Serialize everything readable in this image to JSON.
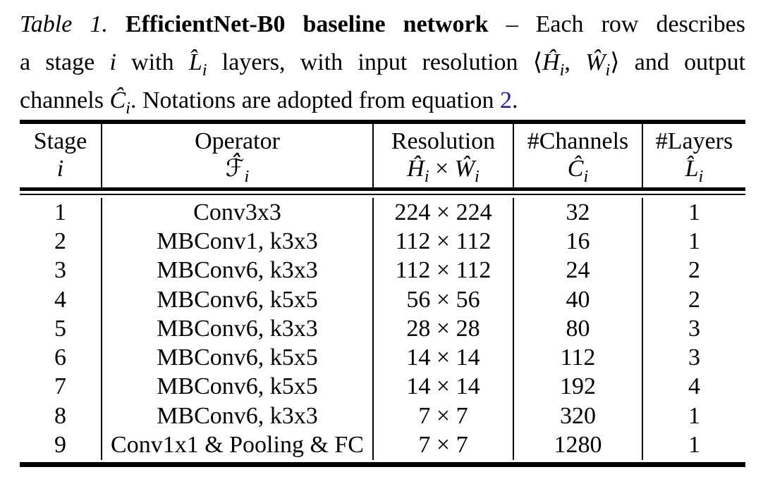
{
  "colors": {
    "text": "#000000",
    "background": "#ffffff",
    "link_blue": "#1c1c9c",
    "rule_black": "#000000"
  },
  "caption": {
    "line1": {
      "label": "Table 1.",
      "title": " EfficientNet-B0 baseline network",
      "rest": " – Each row describes"
    },
    "line2": {
      "pre": "a stage ",
      "i": "i",
      "mid": " with ",
      "L": {
        "base": "L̂",
        "sub": "i"
      },
      "mid2": " layers, with input resolution ",
      "langle": "⟨",
      "H": {
        "base": "Ĥ",
        "sub": "i"
      },
      "comma": ", ",
      "W": {
        "base": "Ŵ",
        "sub": "i"
      },
      "rangle": "⟩",
      "post": " and output"
    },
    "line3": {
      "pre": "channels ",
      "C": {
        "base": "Ĉ",
        "sub": "i"
      },
      "mid": ". Notations are adopted from equation ",
      "link": "2",
      "period": "."
    }
  },
  "table": {
    "header": {
      "stage": {
        "label": "Stage",
        "symbol_i": "i"
      },
      "operator": {
        "label": "Operator",
        "F": {
          "base": "ℱ̂",
          "sub": "i"
        }
      },
      "resolution": {
        "label": "Resolution",
        "H": {
          "base": "Ĥ",
          "sub": "i"
        },
        "times": " × ",
        "W": {
          "base": "Ŵ",
          "sub": "i"
        }
      },
      "channels": {
        "label": "#Channels",
        "C": {
          "base": "Ĉ",
          "sub": "i"
        }
      },
      "layers": {
        "label": "#Layers",
        "L": {
          "base": "L̂",
          "sub": "i"
        }
      }
    },
    "rows": [
      {
        "stage": "1",
        "operator": "Conv3x3",
        "resolution": "224 × 224",
        "channels": "32",
        "layers": "1"
      },
      {
        "stage": "2",
        "operator": "MBConv1, k3x3",
        "resolution": "112 × 112",
        "channels": "16",
        "layers": "1"
      },
      {
        "stage": "3",
        "operator": "MBConv6, k3x3",
        "resolution": "112 × 112",
        "channels": "24",
        "layers": "2"
      },
      {
        "stage": "4",
        "operator": "MBConv6, k5x5",
        "resolution": "56 × 56",
        "channels": "40",
        "layers": "2"
      },
      {
        "stage": "5",
        "operator": "MBConv6, k3x3",
        "resolution": "28 × 28",
        "channels": "80",
        "layers": "3"
      },
      {
        "stage": "6",
        "operator": "MBConv6, k5x5",
        "resolution": "14 × 14",
        "channels": "112",
        "layers": "3"
      },
      {
        "stage": "7",
        "operator": "MBConv6, k5x5",
        "resolution": "14 × 14",
        "channels": "192",
        "layers": "4"
      },
      {
        "stage": "8",
        "operator": "MBConv6, k3x3",
        "resolution": "7 × 7",
        "channels": "320",
        "layers": "1"
      },
      {
        "stage": "9",
        "operator": "Conv1x1 & Pooling & FC",
        "resolution": "7 × 7",
        "channels": "1280",
        "layers": "1"
      }
    ]
  }
}
